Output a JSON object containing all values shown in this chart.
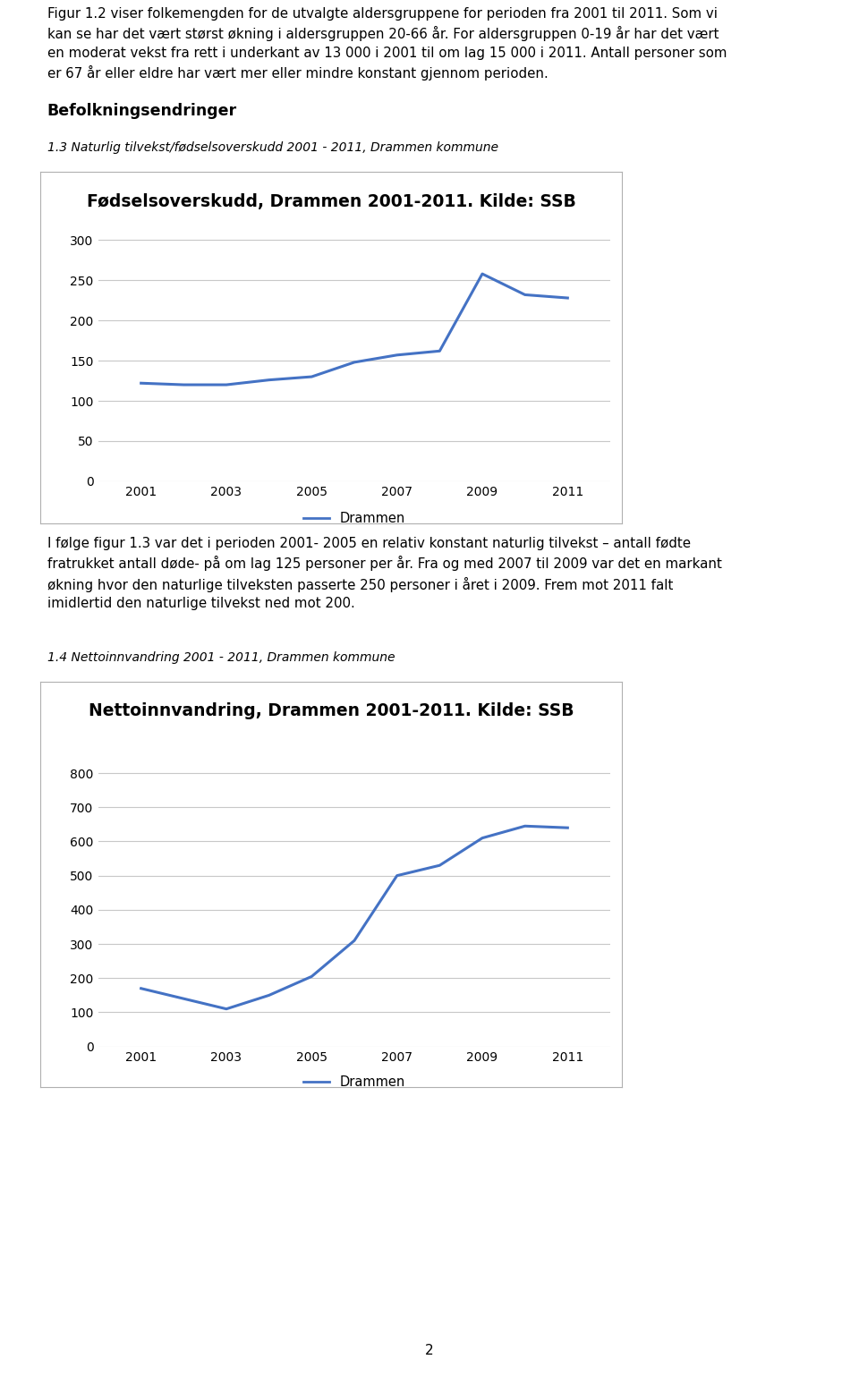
{
  "page_text_top": [
    "Figur 1.2 viser folkemengden for de utvalgte aldersgruppene for perioden fra 2001 til 2011. Som vi",
    "kan se har det vært størst økning i aldersgruppen 20-66 år. For aldersgruppen 0-19 år har det vært",
    "en moderat vekst fra rett i underkant av 13 000 i 2001 til om lag 15 000 i 2011. Antall personer som",
    "er 67 år eller eldre har vært mer eller mindre konstant gjennom perioden."
  ],
  "section_heading": "Befolkningsendringer",
  "chart1_caption": "1.3 Naturlig tilvekst/fødselsoverskudd 2001 - 2011, Drammen kommune",
  "chart1_title": "Fødselsoverskudd, Drammen 2001-2011. Kilde: SSB",
  "chart1_years": [
    2001,
    2002,
    2003,
    2004,
    2005,
    2006,
    2007,
    2008,
    2009,
    2010,
    2011
  ],
  "chart1_values": [
    122,
    120,
    120,
    126,
    130,
    148,
    157,
    162,
    258,
    232,
    228
  ],
  "chart1_xticks": [
    2001,
    2003,
    2005,
    2007,
    2009,
    2011
  ],
  "chart1_yticks": [
    0,
    50,
    100,
    150,
    200,
    250,
    300
  ],
  "chart1_ylim": [
    0,
    315
  ],
  "chart1_legend": "Drammen",
  "chart1_line_color": "#4472C4",
  "chart2_caption": "1.4 Nettoinnvandring 2001 - 2011, Drammen kommune",
  "chart2_title": "Nettoinnvandring, Drammen 2001-2011. Kilde: SSB",
  "chart2_years": [
    2001,
    2002,
    2003,
    2004,
    2005,
    2006,
    2007,
    2008,
    2009,
    2010,
    2011
  ],
  "chart2_values": [
    170,
    140,
    110,
    150,
    205,
    310,
    500,
    530,
    610,
    645,
    640
  ],
  "chart2_xticks": [
    2001,
    2003,
    2005,
    2007,
    2009,
    2011
  ],
  "chart2_yticks": [
    0,
    100,
    200,
    300,
    400,
    500,
    600,
    700,
    800
  ],
  "chart2_ylim": [
    0,
    830
  ],
  "chart2_legend": "Drammen",
  "chart2_line_color": "#4472C4",
  "page_text_middle": [
    "I følge figur 1.3 var det i perioden 2001- 2005 en relativ konstant naturlig tilvekst – antall fødte",
    "fratrukket antall døde- på om lag 125 personer per år. Fra og med 2007 til 2009 var det en markant",
    "økning hvor den naturlige tilveksten passerte 250 personer i året i 2009. Frem mot 2011 falt",
    "imidlertid den naturlige tilvekst ned mot 200."
  ],
  "page_number": "2",
  "background_color": "#ffffff",
  "chart_bg_color": "#ffffff",
  "grid_color": "#c8c8c8",
  "text_color": "#000000",
  "line_width": 2.2,
  "chart_border_color": "#aaaaaa"
}
